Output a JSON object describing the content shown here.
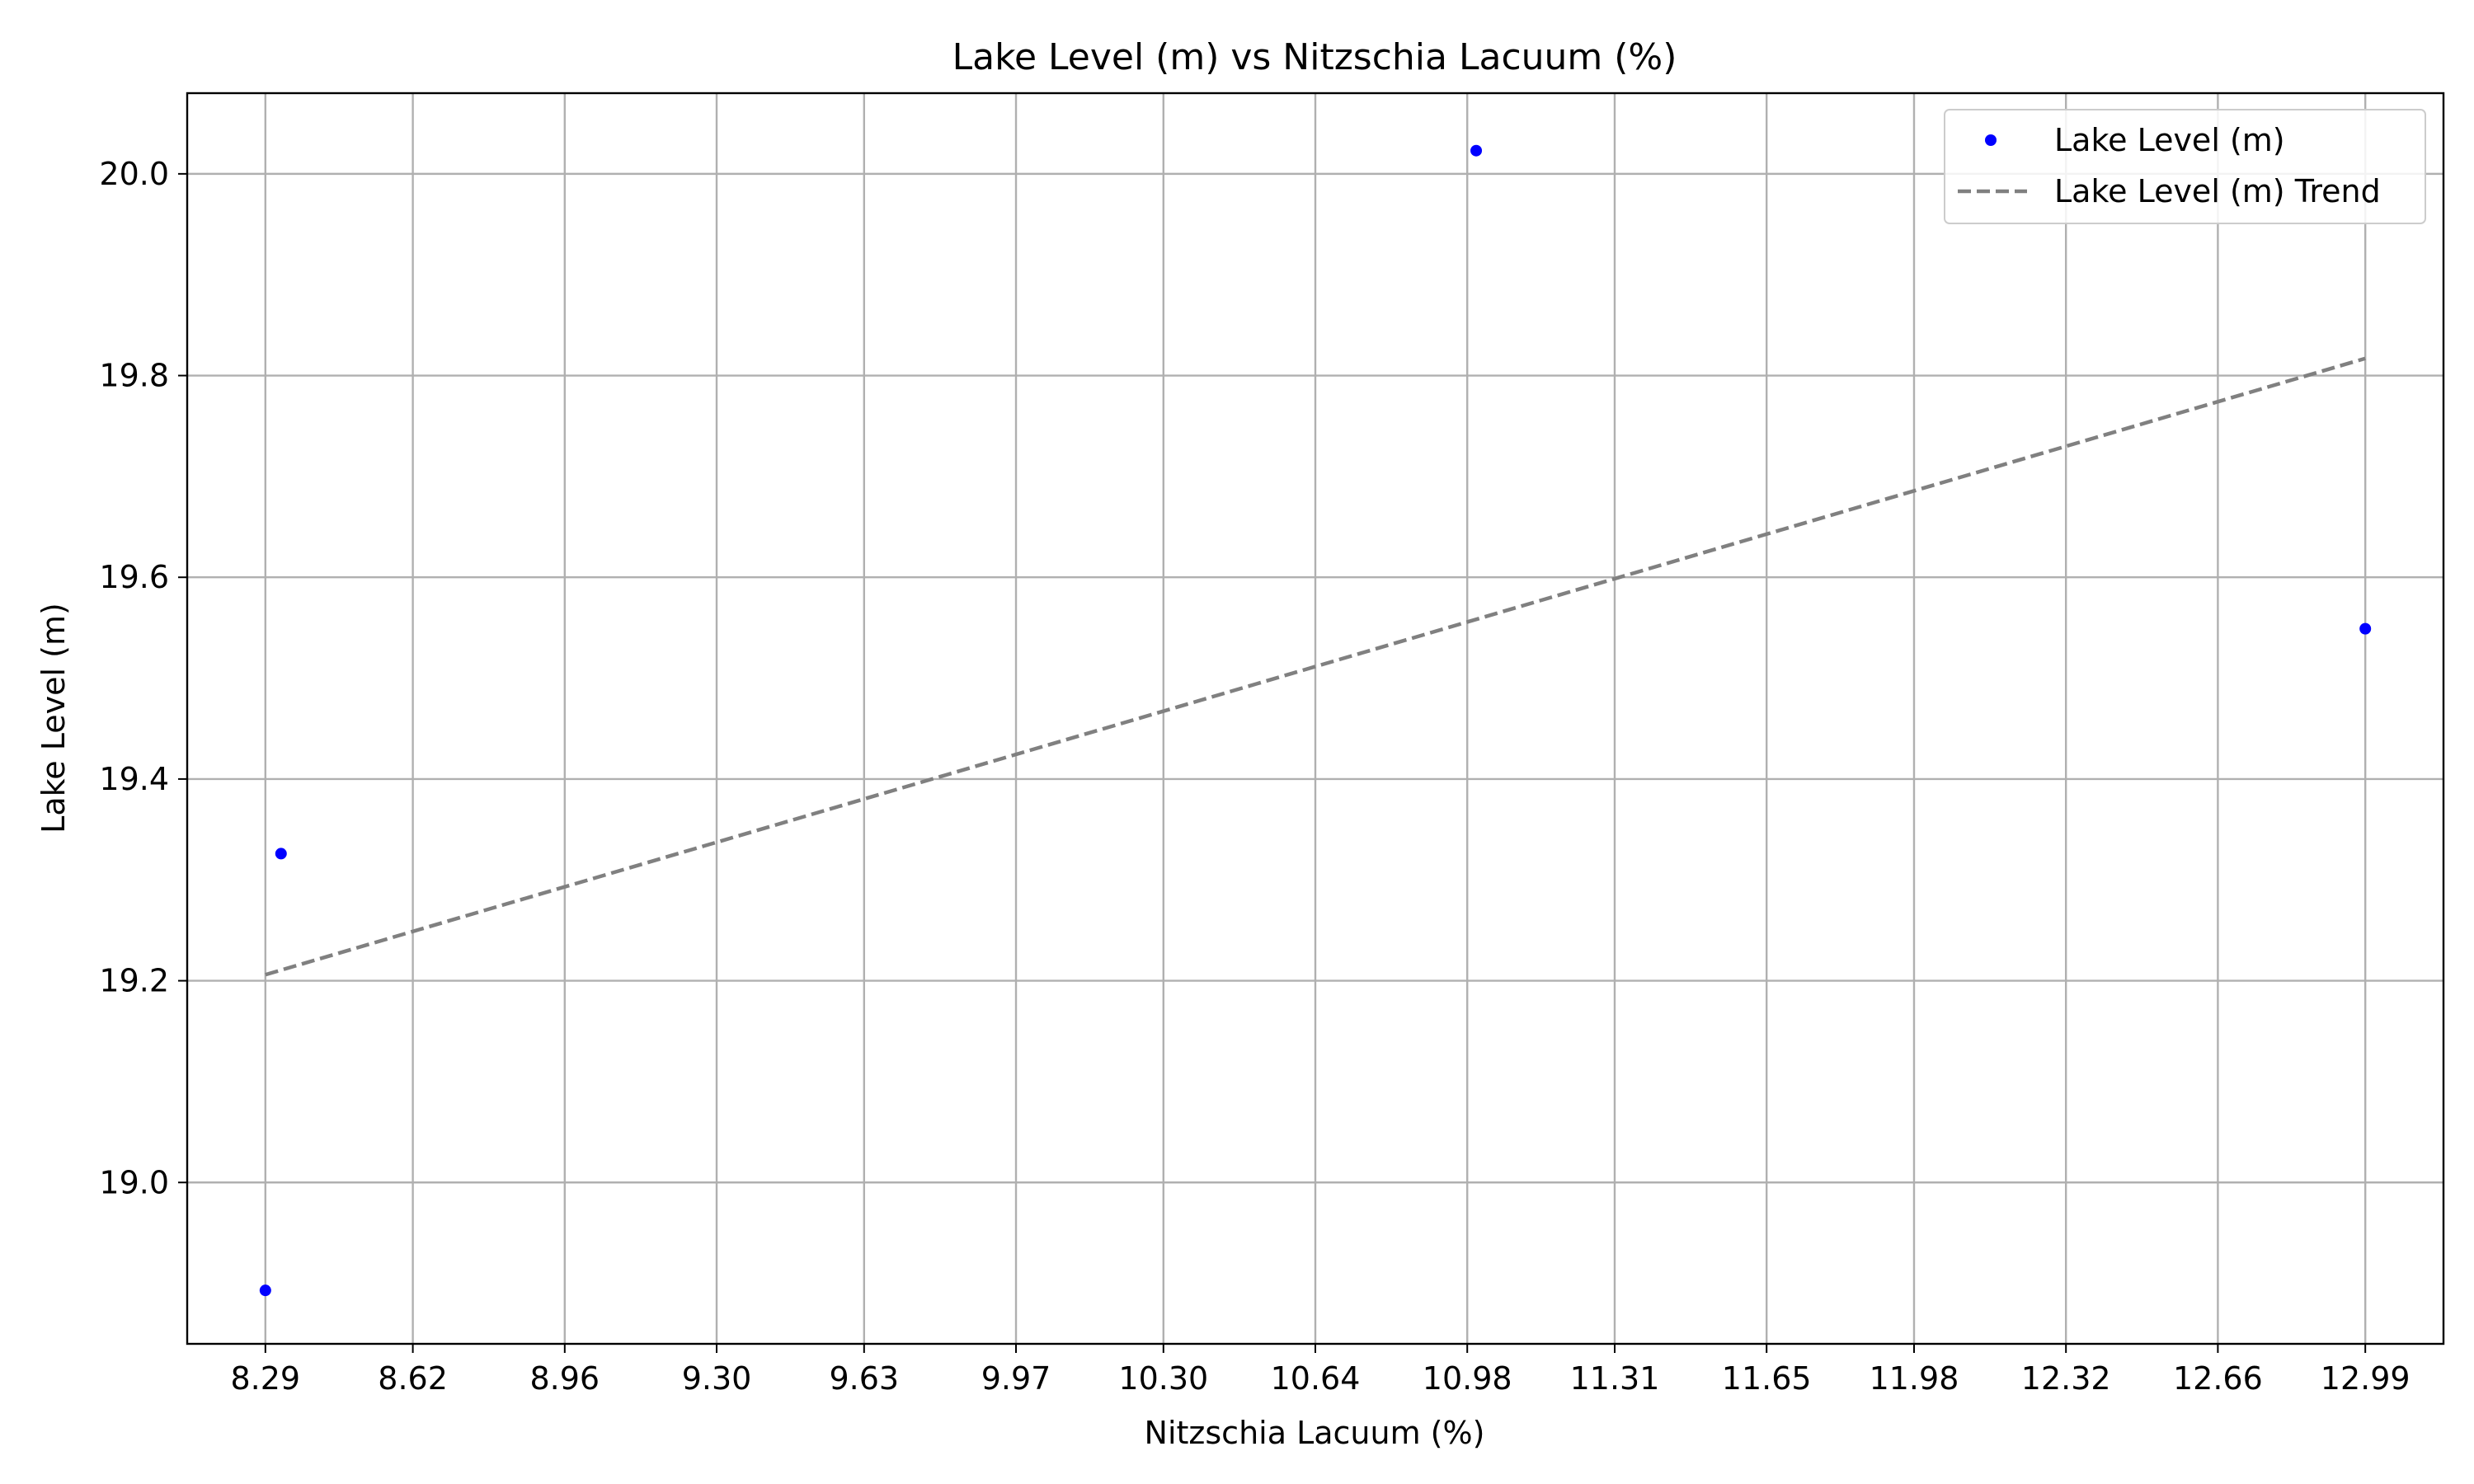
{
  "chart_data": {
    "type": "scatter",
    "title": "Lake Level (m) vs Nitzschia Lacuum (%)",
    "xlabel": "Nitzschia Lacuum (%)",
    "ylabel": "Lake Level (m)",
    "xlim": [
      8.115,
      13.165
    ],
    "ylim": [
      18.84,
      20.08
    ],
    "x_ticks": [
      "8.29",
      "8.62",
      "8.96",
      "9.30",
      "9.63",
      "9.97",
      "10.30",
      "10.64",
      "10.98",
      "11.31",
      "11.65",
      "11.98",
      "12.32",
      "12.66",
      "12.99"
    ],
    "y_ticks": [
      "19.0",
      "19.2",
      "19.4",
      "19.6",
      "19.8",
      "20.0"
    ],
    "grid": true,
    "legend_position": "top-right",
    "series": [
      {
        "name": "Lake Level (m)",
        "kind": "scatter",
        "color": "#0000ff",
        "points": [
          {
            "x": 8.29,
            "y": 18.893
          },
          {
            "x": 8.325,
            "y": 19.326
          },
          {
            "x": 11.0,
            "y": 20.023
          },
          {
            "x": 12.99,
            "y": 19.549
          }
        ]
      },
      {
        "name": "Lake Level (m) Trend",
        "kind": "line",
        "style": "dashed",
        "color": "#808080",
        "points": [
          {
            "x": 8.29,
            "y": 19.206
          },
          {
            "x": 12.99,
            "y": 19.817
          }
        ]
      }
    ]
  }
}
